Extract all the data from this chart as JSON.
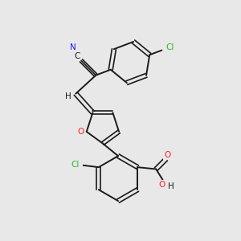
{
  "background_color": "#e8e8e8",
  "bond_color": "#1a1a1a",
  "atom_colors": {
    "N": "#1a1aff",
    "O": "#ff2020",
    "Cl": "#2db82d",
    "C": "#1a1a1a",
    "H": "#1a1a1a"
  },
  "figsize": [
    3.0,
    3.0
  ],
  "dpi": 100
}
